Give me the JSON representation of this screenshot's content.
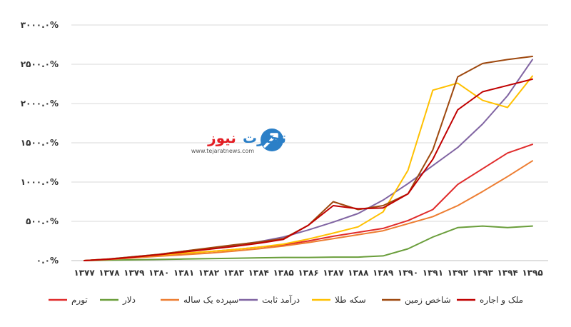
{
  "watermark": {
    "brand_part1": "تجارت",
    "brand_part2": "نیوز",
    "url": "www.tejaratnews.com",
    "brand_color": "#2b7fc7",
    "accent_color": "#e31e24",
    "icon": "tejaratnews-logo-icon"
  },
  "chart_data": {
    "type": "line",
    "title": "",
    "xlabel": "",
    "ylabel": "",
    "x": [
      "۱۳۷۷",
      "۱۳۷۸",
      "۱۳۷۹",
      "۱۳۸۰",
      "۱۳۸۱",
      "۱۳۸۲",
      "۱۳۸۳",
      "۱۳۸۴",
      "۱۳۸۵",
      "۱۳۸۶",
      "۱۳۸۷",
      "۱۳۸۸",
      "۱۳۸۹",
      "۱۳۹۰",
      "۱۳۹۱",
      "۱۳۹۲",
      "۱۳۹۳",
      "۱۳۹۴",
      "۱۳۹۵"
    ],
    "ylim": [
      0,
      3000
    ],
    "y_ticks": [
      0,
      500,
      1000,
      1500,
      2000,
      2500,
      3000
    ],
    "y_tick_labels": [
      "۰.۰%",
      "۵۰۰.۰%",
      "۱۰۰۰.۰%",
      "۱۵۰۰.۰%",
      "۲۰۰۰.۰%",
      "۲۵۰۰.۰%",
      "۳۰۰۰.۰%"
    ],
    "grid": true,
    "legend_position": "bottom",
    "series": [
      {
        "name": "تورم",
        "color": "#e02b2b",
        "values": [
          0,
          15,
          40,
          65,
          90,
          115,
          140,
          170,
          200,
          250,
          310,
          360,
          410,
          510,
          650,
          970,
          1170,
          1370,
          1480
        ]
      },
      {
        "name": "دلار",
        "color": "#6a9e3b",
        "values": [
          0,
          5,
          10,
          15,
          20,
          25,
          30,
          35,
          40,
          40,
          45,
          45,
          60,
          150,
          300,
          420,
          440,
          420,
          440
        ]
      },
      {
        "name": "سپرده یک ساله",
        "color": "#ed7d31",
        "values": [
          0,
          15,
          35,
          55,
          75,
          95,
          120,
          150,
          185,
          230,
          280,
          330,
          380,
          470,
          560,
          700,
          880,
          1070,
          1270
        ]
      },
      {
        "name": "درآمد ثابت",
        "color": "#8064a2",
        "values": [
          0,
          20,
          50,
          80,
          120,
          155,
          195,
          240,
          300,
          390,
          490,
          600,
          770,
          980,
          1210,
          1440,
          1740,
          2100,
          2560
        ]
      },
      {
        "name": "سکه طلا",
        "color": "#ffc000",
        "values": [
          0,
          20,
          45,
          70,
          95,
          115,
          140,
          170,
          210,
          275,
          350,
          430,
          620,
          1150,
          2170,
          2260,
          2040,
          1950,
          2350
        ]
      },
      {
        "name": "شاخص زمین",
        "color": "#9e480e",
        "values": [
          0,
          20,
          50,
          80,
          120,
          160,
          200,
          235,
          280,
          450,
          750,
          650,
          700,
          850,
          1410,
          2340,
          2510,
          2560,
          2600
        ]
      },
      {
        "name": "ملک و اجاره",
        "color": "#c00000",
        "values": [
          0,
          18,
          45,
          75,
          110,
          145,
          180,
          220,
          270,
          450,
          700,
          660,
          670,
          850,
          1290,
          1920,
          2150,
          2230,
          2310
        ]
      }
    ]
  }
}
